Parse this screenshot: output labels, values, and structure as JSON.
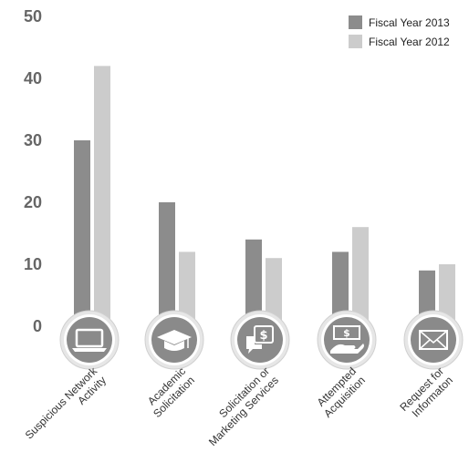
{
  "chart_data": {
    "type": "bar",
    "categories": [
      [
        "Suspicious Network",
        "Activity"
      ],
      [
        "Academic",
        "Solicitation"
      ],
      [
        "Solicitation or",
        "Marketing Services"
      ],
      [
        "Attempted",
        "Acquisition"
      ],
      [
        "Request for",
        "Informaton"
      ]
    ],
    "category_icons": [
      "laptop-icon",
      "graduation-cap-icon",
      "dollar-speech-bubble-icon",
      "money-hand-icon",
      "envelope-icon"
    ],
    "series": [
      {
        "name": "Fiscal Year 2013",
        "values": [
          30,
          20,
          14,
          12,
          9
        ],
        "color": "#8c8c8c"
      },
      {
        "name": "Fiscal Year 2012",
        "values": [
          42,
          12,
          11,
          16,
          10
        ],
        "color": "#cccccc"
      }
    ],
    "yticks": [
      "0",
      "10",
      "20",
      "30",
      "40",
      "50"
    ],
    "ylim": [
      0,
      50
    ],
    "legend_position": "top-right",
    "grid": false
  }
}
